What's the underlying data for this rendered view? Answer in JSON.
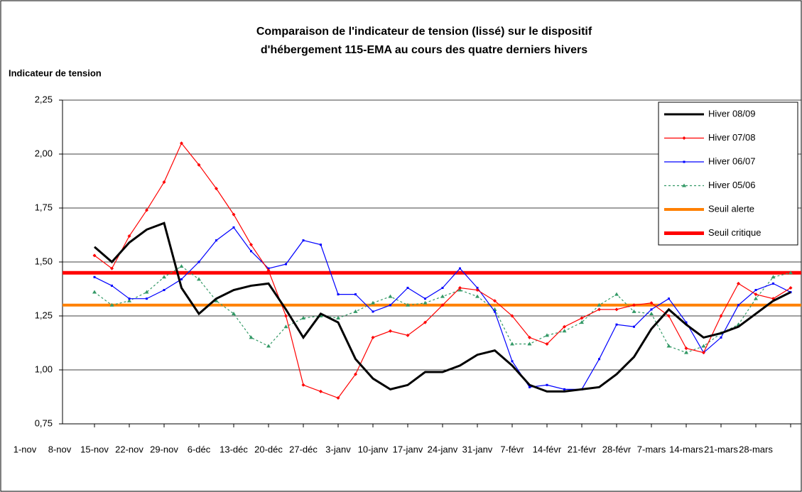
{
  "chart_data": {
    "type": "line",
    "title": [
      "Comparaison de l'indicateur de tension (lissé) sur le dispositif",
      "d'hébergement 115-EMA au cours des quatre derniers hivers"
    ],
    "y_label": "Indicateur de tension",
    "categories": [
      "1-nov",
      null,
      "8-nov",
      null,
      "15-nov",
      null,
      "22-nov",
      null,
      "29-nov",
      null,
      "6-déc",
      null,
      "13-déc",
      null,
      "20-déc",
      null,
      "27-déc",
      null,
      "3-janv",
      null,
      "10-janv",
      null,
      "17-janv",
      null,
      "24-janv",
      null,
      "31-janv",
      null,
      "7-févr",
      null,
      "14-févr",
      null,
      "21-févr",
      null,
      "28-févr",
      null,
      "7-mars",
      null,
      "14-mars",
      null,
      "21-mars",
      null,
      "28-mars",
      null,
      null
    ],
    "ylim": [
      0.75,
      2.25
    ],
    "yticks": [
      {
        "value": 0.75,
        "label": "0,75"
      },
      {
        "value": 1.0,
        "label": "1,00"
      },
      {
        "value": 1.25,
        "label": "1,25"
      },
      {
        "value": 1.5,
        "label": "1,50"
      },
      {
        "value": 1.75,
        "label": "1,75"
      },
      {
        "value": 2.0,
        "label": "2,00"
      },
      {
        "value": 2.25,
        "label": "2,25"
      }
    ],
    "grid": true,
    "legend": "top-right",
    "series": [
      {
        "name": "Hiver 08/09",
        "color": "#000000",
        "marker": "none",
        "width": 3,
        "values": [
          null,
          null,
          null,
          null,
          1.57,
          1.5,
          1.59,
          1.65,
          1.68,
          1.38,
          1.26,
          1.33,
          1.37,
          1.39,
          1.4,
          1.28,
          1.15,
          1.26,
          1.22,
          1.05,
          0.96,
          0.91,
          0.93,
          0.99,
          0.99,
          1.02,
          1.07,
          1.09,
          1.02,
          0.93,
          0.9,
          0.9,
          0.91,
          0.92,
          0.98,
          1.06,
          1.19,
          1.28,
          1.21,
          1.15,
          1.17,
          1.2,
          1.26,
          1.32,
          1.36
        ]
      },
      {
        "name": "Hiver 07/08",
        "color": "#ff0000",
        "marker": "diamond",
        "width": 1.2,
        "values": [
          null,
          null,
          null,
          null,
          1.53,
          1.47,
          1.62,
          1.74,
          1.87,
          2.05,
          1.95,
          1.84,
          1.72,
          1.58,
          1.46,
          1.25,
          0.93,
          0.9,
          0.87,
          0.98,
          1.15,
          1.18,
          1.16,
          1.22,
          1.3,
          1.38,
          1.37,
          1.32,
          1.25,
          1.15,
          1.12,
          1.2,
          1.24,
          1.28,
          1.28,
          1.3,
          1.31,
          1.25,
          1.1,
          1.08,
          1.25,
          1.4,
          1.35,
          1.33,
          1.38
        ]
      },
      {
        "name": "Hiver 06/07",
        "color": "#0000ff",
        "marker": "square",
        "width": 1.2,
        "values": [
          null,
          null,
          null,
          null,
          1.43,
          1.39,
          1.33,
          1.33,
          1.37,
          1.42,
          1.5,
          1.6,
          1.66,
          1.55,
          1.47,
          1.49,
          1.6,
          1.58,
          1.35,
          1.35,
          1.27,
          1.3,
          1.38,
          1.33,
          1.38,
          1.47,
          1.38,
          1.27,
          1.04,
          0.92,
          0.93,
          0.91,
          0.91,
          1.05,
          1.21,
          1.2,
          1.28,
          1.33,
          1.22,
          1.08,
          1.15,
          1.3,
          1.37,
          1.4,
          1.36
        ]
      },
      {
        "name": "Hiver 05/06",
        "color": "#339966",
        "marker": "triangle",
        "width": 1.2,
        "dash": true,
        "values": [
          null,
          null,
          null,
          null,
          1.36,
          1.3,
          1.32,
          1.36,
          1.43,
          1.48,
          1.42,
          1.32,
          1.26,
          1.15,
          1.11,
          1.2,
          1.24,
          1.25,
          1.24,
          1.27,
          1.31,
          1.34,
          1.3,
          1.31,
          1.34,
          1.37,
          1.34,
          1.28,
          1.12,
          1.12,
          1.16,
          1.18,
          1.22,
          1.3,
          1.35,
          1.27,
          1.26,
          1.11,
          1.08,
          1.11,
          1.17,
          1.21,
          1.33,
          1.43,
          1.45
        ]
      },
      {
        "name": "Seuil alerte",
        "color": "#ff8000",
        "width": 4,
        "value": 1.3
      },
      {
        "name": "Seuil critique",
        "color": "#ff0000",
        "width": 5,
        "value": 1.45
      }
    ]
  }
}
